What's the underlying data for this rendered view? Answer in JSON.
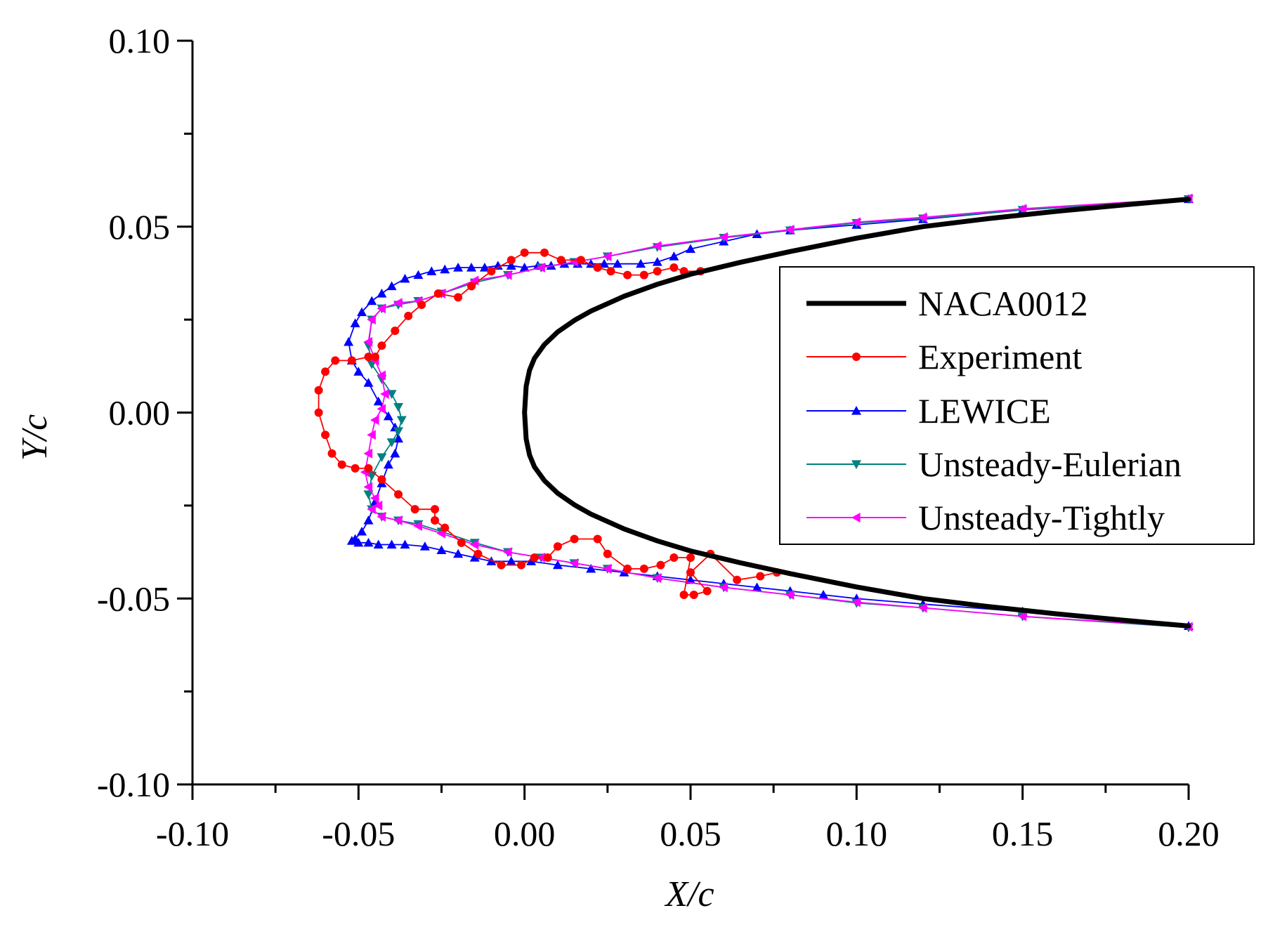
{
  "chart_data": {
    "type": "line",
    "title": "",
    "xlabel": "X/c",
    "ylabel": "Y/c",
    "xlim": [
      -0.1,
      0.2
    ],
    "ylim": [
      -0.1,
      0.1
    ],
    "x_ticks": [
      -0.1,
      -0.05,
      0.0,
      0.05,
      0.1,
      0.15,
      0.2
    ],
    "x_tick_labels": [
      "-0.10",
      "-0.05",
      "0.00",
      "0.05",
      "0.10",
      "0.15",
      "0.20"
    ],
    "y_ticks": [
      -0.1,
      -0.05,
      0.0,
      0.05,
      0.1
    ],
    "y_tick_labels": [
      "-0.10",
      "-0.05",
      "0.00",
      "0.05",
      "0.10"
    ],
    "legend_position": "right",
    "series": [
      {
        "name": "NACA0012",
        "color": "#000000",
        "marker": "none",
        "x": [
          0.2,
          0.18,
          0.16,
          0.14,
          0.12,
          0.1,
          0.08,
          0.065,
          0.05,
          0.04,
          0.03,
          0.02,
          0.015,
          0.01,
          0.006,
          0.003,
          0.0015,
          0.0005,
          0.0,
          0.0005,
          0.0015,
          0.003,
          0.006,
          0.01,
          0.015,
          0.02,
          0.03,
          0.04,
          0.05,
          0.065,
          0.08,
          0.1,
          0.12,
          0.14,
          0.16,
          0.18,
          0.2
        ],
        "y": [
          0.0574,
          0.0558,
          0.0541,
          0.0522,
          0.05,
          0.0469,
          0.0433,
          0.0404,
          0.0372,
          0.0345,
          0.0313,
          0.0273,
          0.0248,
          0.0217,
          0.0183,
          0.0146,
          0.0114,
          0.0071,
          0.0,
          -0.0071,
          -0.0114,
          -0.0146,
          -0.0183,
          -0.0217,
          -0.0248,
          -0.0273,
          -0.0313,
          -0.0345,
          -0.0372,
          -0.0404,
          -0.0433,
          -0.0469,
          -0.05,
          -0.0522,
          -0.0541,
          -0.0558,
          -0.0574
        ]
      },
      {
        "name": "Experiment",
        "color": "#ff0000",
        "marker": "circle",
        "x": [
          0.053,
          0.048,
          0.045,
          0.04,
          0.036,
          0.031,
          0.026,
          0.022,
          0.017,
          0.011,
          0.006,
          0.0,
          -0.004,
          -0.01,
          -0.016,
          -0.02,
          -0.026,
          -0.031,
          -0.035,
          -0.039,
          -0.043,
          -0.045,
          -0.047,
          -0.052,
          -0.057,
          -0.06,
          -0.062,
          -0.062,
          -0.06,
          -0.058,
          -0.055,
          -0.051,
          -0.047,
          -0.043,
          -0.038,
          -0.033,
          -0.027,
          -0.027,
          -0.024,
          -0.019,
          -0.014,
          -0.007,
          -0.001,
          0.003,
          0.007,
          0.01,
          0.015,
          0.022,
          0.025,
          0.031,
          0.036,
          0.041,
          0.045,
          0.05,
          0.048,
          0.051,
          0.055,
          0.05,
          0.056,
          0.064,
          0.071,
          0.076
        ],
        "y": [
          0.038,
          0.038,
          0.039,
          0.038,
          0.037,
          0.037,
          0.038,
          0.039,
          0.041,
          0.041,
          0.043,
          0.043,
          0.041,
          0.038,
          0.034,
          0.031,
          0.032,
          0.029,
          0.026,
          0.022,
          0.018,
          0.015,
          0.015,
          0.014,
          0.014,
          0.011,
          0.006,
          0.0,
          -0.006,
          -0.011,
          -0.014,
          -0.015,
          -0.015,
          -0.018,
          -0.022,
          -0.026,
          -0.026,
          -0.029,
          -0.031,
          -0.035,
          -0.038,
          -0.041,
          -0.041,
          -0.039,
          -0.039,
          -0.036,
          -0.034,
          -0.034,
          -0.038,
          -0.042,
          -0.042,
          -0.041,
          -0.039,
          -0.039,
          -0.049,
          -0.049,
          -0.048,
          -0.043,
          -0.038,
          -0.045,
          -0.044,
          -0.043
        ]
      },
      {
        "name": "LEWICE",
        "color": "#0000ff",
        "marker": "triangle-up",
        "x": [
          0.2,
          0.15,
          0.12,
          0.1,
          0.08,
          0.07,
          0.06,
          0.05,
          0.045,
          0.04,
          0.035,
          0.028,
          0.024,
          0.02,
          0.016,
          0.012,
          0.008,
          0.004,
          0.0,
          -0.004,
          -0.008,
          -0.012,
          -0.016,
          -0.02,
          -0.024,
          -0.028,
          -0.032,
          -0.036,
          -0.04,
          -0.043,
          -0.046,
          -0.049,
          -0.051,
          -0.053,
          -0.052,
          -0.05,
          -0.047,
          -0.044,
          -0.041,
          -0.039,
          -0.038,
          -0.039,
          -0.041,
          -0.043,
          -0.045,
          -0.047,
          -0.049,
          -0.051,
          -0.052,
          -0.05,
          -0.047,
          -0.044,
          -0.04,
          -0.036,
          -0.03,
          -0.025,
          -0.02,
          -0.015,
          -0.01,
          -0.004,
          0.002,
          0.01,
          0.02,
          0.03,
          0.04,
          0.05,
          0.06,
          0.07,
          0.08,
          0.09,
          0.1,
          0.12,
          0.15,
          0.2
        ],
        "y": [
          0.0574,
          0.0545,
          0.052,
          0.0505,
          0.049,
          0.048,
          0.046,
          0.044,
          0.042,
          0.0405,
          0.04,
          0.04,
          0.04,
          0.04,
          0.04,
          0.04,
          0.0395,
          0.0395,
          0.039,
          0.0395,
          0.0395,
          0.039,
          0.039,
          0.039,
          0.0385,
          0.038,
          0.037,
          0.036,
          0.034,
          0.032,
          0.03,
          0.027,
          0.024,
          0.019,
          0.014,
          0.011,
          0.008,
          0.003,
          -0.001,
          -0.004,
          -0.007,
          -0.011,
          -0.014,
          -0.019,
          -0.024,
          -0.029,
          -0.032,
          -0.034,
          -0.0345,
          -0.035,
          -0.035,
          -0.0355,
          -0.0355,
          -0.0355,
          -0.036,
          -0.037,
          -0.038,
          -0.039,
          -0.04,
          -0.04,
          -0.04,
          -0.041,
          -0.042,
          -0.043,
          -0.044,
          -0.045,
          -0.046,
          -0.047,
          -0.048,
          -0.049,
          -0.05,
          -0.0515,
          -0.0535,
          -0.0574
        ]
      },
      {
        "name": "Unsteady-Eulerian",
        "color": "#008080",
        "marker": "triangle-down",
        "x": [
          0.2,
          0.15,
          0.12,
          0.1,
          0.08,
          0.06,
          0.04,
          0.025,
          0.015,
          0.005,
          -0.005,
          -0.015,
          -0.025,
          -0.032,
          -0.038,
          -0.043,
          -0.046,
          -0.047,
          -0.046,
          -0.043,
          -0.04,
          -0.038,
          -0.037,
          -0.038,
          -0.04,
          -0.043,
          -0.046,
          -0.047,
          -0.046,
          -0.043,
          -0.038,
          -0.032,
          -0.025,
          -0.015,
          -0.005,
          0.005,
          0.015,
          0.025,
          0.04,
          0.06,
          0.08,
          0.1,
          0.12,
          0.15,
          0.2
        ],
        "y": [
          0.0574,
          0.0545,
          0.0522,
          0.051,
          0.049,
          0.047,
          0.0445,
          0.042,
          0.0405,
          0.039,
          0.037,
          0.035,
          0.032,
          0.03,
          0.029,
          0.028,
          0.025,
          0.018,
          0.013,
          0.009,
          0.005,
          0.0015,
          -0.002,
          -0.005,
          -0.008,
          -0.012,
          -0.017,
          -0.022,
          -0.026,
          -0.028,
          -0.029,
          -0.03,
          -0.032,
          -0.035,
          -0.0375,
          -0.039,
          -0.0405,
          -0.042,
          -0.0445,
          -0.047,
          -0.049,
          -0.0512,
          -0.0525,
          -0.0548,
          -0.0578
        ]
      },
      {
        "name": "Unsteady-Tightly",
        "color": "#ff00ff",
        "marker": "triangle-left",
        "x": [
          0.2,
          0.15,
          0.12,
          0.1,
          0.08,
          0.06,
          0.04,
          0.025,
          0.015,
          0.005,
          -0.005,
          -0.015,
          -0.025,
          -0.032,
          -0.038,
          -0.043,
          -0.046,
          -0.047,
          -0.045,
          -0.043,
          -0.042,
          -0.043,
          -0.045,
          -0.046,
          -0.047,
          -0.048,
          -0.047,
          -0.045,
          -0.044,
          -0.046,
          -0.043,
          -0.038,
          -0.032,
          -0.025,
          -0.015,
          -0.005,
          0.005,
          0.015,
          0.025,
          0.04,
          0.06,
          0.08,
          0.1,
          0.12,
          0.15,
          0.2
        ],
        "y": [
          0.0576,
          0.0548,
          0.0525,
          0.0512,
          0.0492,
          0.0472,
          0.0448,
          0.042,
          0.0405,
          0.039,
          0.037,
          0.0355,
          0.032,
          0.03,
          0.0295,
          0.028,
          0.025,
          0.019,
          0.014,
          0.01,
          0.005,
          0.001,
          -0.002,
          -0.006,
          -0.011,
          -0.016,
          -0.02,
          -0.023,
          -0.025,
          -0.026,
          -0.028,
          -0.029,
          -0.0305,
          -0.0325,
          -0.0355,
          -0.0375,
          -0.039,
          -0.0405,
          -0.042,
          -0.0445,
          -0.047,
          -0.049,
          -0.051,
          -0.0525,
          -0.0548,
          -0.0576
        ]
      }
    ]
  }
}
